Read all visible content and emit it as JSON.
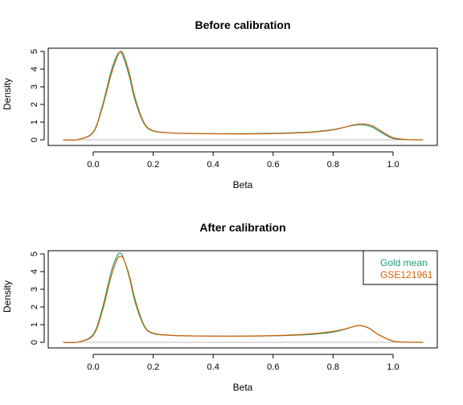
{
  "chart_data": [
    {
      "type": "line",
      "title": "Before calibration",
      "xlabel": "Beta",
      "ylabel": "Density",
      "xlim": [
        -0.1,
        1.1
      ],
      "ylim": [
        0,
        5
      ],
      "xticks": [
        "0.0",
        "0.2",
        "0.4",
        "0.6",
        "0.8",
        "1.0"
      ],
      "yticks": [
        "0",
        "1",
        "2",
        "3",
        "4",
        "5"
      ],
      "legend": null,
      "series": [
        {
          "color": "#1B9E77",
          "x": [
            -0.1,
            -0.05,
            0.0,
            0.03,
            0.06,
            0.08,
            0.09,
            0.1,
            0.12,
            0.14,
            0.17,
            0.2,
            0.25,
            0.3,
            0.4,
            0.5,
            0.6,
            0.7,
            0.75,
            0.8,
            0.84,
            0.87,
            0.9,
            0.93,
            0.96,
            1.0,
            1.05,
            1.1
          ],
          "y": [
            0.0,
            0.02,
            0.45,
            1.9,
            3.9,
            4.8,
            4.95,
            4.7,
            3.6,
            2.2,
            0.9,
            0.5,
            0.4,
            0.37,
            0.35,
            0.35,
            0.37,
            0.42,
            0.48,
            0.58,
            0.72,
            0.82,
            0.85,
            0.72,
            0.42,
            0.08,
            0.01,
            0.0
          ]
        },
        {
          "color": "#D95F02",
          "x": [
            -0.1,
            -0.05,
            0.0,
            0.03,
            0.06,
            0.08,
            0.09,
            0.1,
            0.12,
            0.14,
            0.17,
            0.2,
            0.25,
            0.3,
            0.4,
            0.5,
            0.6,
            0.7,
            0.75,
            0.8,
            0.84,
            0.87,
            0.9,
            0.93,
            0.96,
            1.0,
            1.05,
            1.1
          ],
          "y": [
            0.0,
            0.02,
            0.42,
            1.8,
            3.7,
            4.7,
            5.0,
            4.85,
            3.8,
            2.35,
            0.95,
            0.52,
            0.4,
            0.36,
            0.34,
            0.33,
            0.35,
            0.4,
            0.46,
            0.56,
            0.72,
            0.85,
            0.9,
            0.8,
            0.5,
            0.12,
            0.01,
            0.0
          ]
        }
      ]
    },
    {
      "type": "line",
      "title": "After calibration",
      "xlabel": "Beta",
      "ylabel": "Density",
      "xlim": [
        -0.1,
        1.1
      ],
      "ylim": [
        0,
        5
      ],
      "xticks": [
        "0.0",
        "0.2",
        "0.4",
        "0.6",
        "0.8",
        "1.0"
      ],
      "yticks": [
        "0",
        "1",
        "2",
        "3",
        "4",
        "5"
      ],
      "legend": "top-right",
      "series": [
        {
          "name": "Gold mean",
          "color": "#1B9E77",
          "x": [
            -0.1,
            -0.05,
            0.0,
            0.03,
            0.06,
            0.08,
            0.09,
            0.1,
            0.12,
            0.14,
            0.17,
            0.2,
            0.25,
            0.3,
            0.4,
            0.5,
            0.6,
            0.7,
            0.75,
            0.8,
            0.84,
            0.87,
            0.89,
            0.92,
            0.95,
            1.0,
            1.05,
            1.1
          ],
          "y": [
            0.0,
            0.02,
            0.45,
            1.9,
            4.0,
            4.9,
            5.05,
            4.8,
            3.7,
            2.25,
            0.9,
            0.5,
            0.4,
            0.37,
            0.35,
            0.35,
            0.37,
            0.42,
            0.48,
            0.58,
            0.74,
            0.9,
            0.95,
            0.8,
            0.45,
            0.07,
            0.01,
            0.0
          ]
        },
        {
          "name": "GSE121961",
          "color": "#D95F02",
          "x": [
            -0.1,
            -0.05,
            0.0,
            0.03,
            0.06,
            0.08,
            0.09,
            0.1,
            0.12,
            0.14,
            0.17,
            0.2,
            0.25,
            0.3,
            0.4,
            0.5,
            0.6,
            0.7,
            0.75,
            0.8,
            0.84,
            0.87,
            0.89,
            0.92,
            0.95,
            1.0,
            1.05,
            1.1
          ],
          "y": [
            0.0,
            0.02,
            0.4,
            1.75,
            3.75,
            4.7,
            4.85,
            4.75,
            3.8,
            2.4,
            0.95,
            0.52,
            0.41,
            0.37,
            0.35,
            0.35,
            0.38,
            0.45,
            0.52,
            0.62,
            0.76,
            0.9,
            0.95,
            0.8,
            0.45,
            0.07,
            0.01,
            0.0
          ]
        }
      ]
    }
  ]
}
